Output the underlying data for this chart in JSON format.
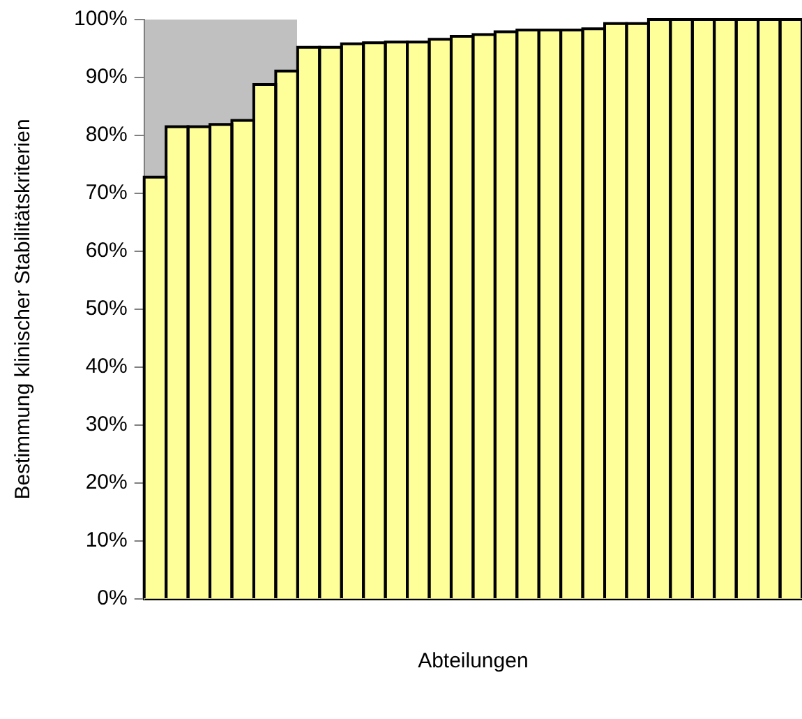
{
  "chart_data": {
    "type": "bar",
    "xlabel": "Abteilungen",
    "ylabel": "Bestimmung klinischer Stabilitätskriterien",
    "categories": [
      null,
      null,
      null,
      null,
      null,
      null,
      null,
      null,
      null,
      null,
      null,
      null,
      null,
      null,
      null,
      null,
      null,
      null,
      null,
      null,
      null,
      null,
      null,
      null,
      null,
      null,
      null,
      null,
      null,
      null
    ],
    "values": [
      72.8,
      81.5,
      81.5,
      81.9,
      82.6,
      88.8,
      91.1,
      95.2,
      95.2,
      95.8,
      96.0,
      96.1,
      96.1,
      96.6,
      97.1,
      97.4,
      97.9,
      98.2,
      98.2,
      98.2,
      98.4,
      99.3,
      99.3,
      100,
      100,
      100,
      100,
      100,
      100,
      100
    ],
    "color": "#ffff99",
    "ylim": [
      0,
      100
    ],
    "yticks": [
      {
        "value": 0,
        "label": "0%"
      },
      {
        "value": 10,
        "label": "10%"
      },
      {
        "value": 20,
        "label": "20%"
      },
      {
        "value": 30,
        "label": "30%"
      },
      {
        "value": 40,
        "label": "40%"
      },
      {
        "value": 50,
        "label": "50%"
      },
      {
        "value": 60,
        "label": "60%"
      },
      {
        "value": 70,
        "label": "70%"
      },
      {
        "value": 80,
        "label": "80%"
      },
      {
        "value": 90,
        "label": "90%"
      },
      {
        "value": 100,
        "label": "100%"
      }
    ],
    "tick_labels": "y",
    "grid": false,
    "legend": false
  }
}
